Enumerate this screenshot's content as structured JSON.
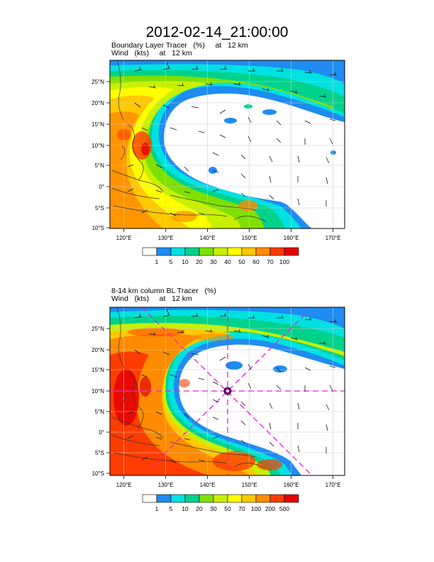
{
  "page_title": "2012-02-14_21:00:00",
  "panels": [
    {
      "line1": "Boundary Layer Tracer   (%)     at   12 km",
      "line2": "Wind   (kts)     at   12 km",
      "colorbar": {
        "labels": [
          "1",
          "5",
          "10",
          "20",
          "30",
          "40",
          "50",
          "60",
          "70",
          "100"
        ],
        "colors": [
          "#ffffff",
          "#1e8cf0",
          "#00e1e1",
          "#00d28c",
          "#7fe000",
          "#c8f000",
          "#ffff00",
          "#ffc800",
          "#ff8c00",
          "#ff3c00",
          "#e60000"
        ]
      }
    },
    {
      "line1": "8-14 km column BL Tracer   (%)",
      "line2": "Wind   (kts)     at   12 km",
      "colorbar": {
        "labels": [
          "1",
          "5",
          "10",
          "20",
          "30",
          "50",
          "70",
          "100",
          "200",
          "500"
        ],
        "colors": [
          "#ffffff",
          "#1e8cf0",
          "#00e1e1",
          "#00d28c",
          "#7fe000",
          "#c8f000",
          "#ffff00",
          "#ffc800",
          "#ff8c00",
          "#ff3c00",
          "#e60000"
        ]
      }
    }
  ],
  "lon_labels": [
    "120°E",
    "130°E",
    "140°E",
    "150°E",
    "160°E",
    "170°E"
  ],
  "lat_labels": [
    "25°N",
    "20°N",
    "15°N",
    "10°N",
    "5°N",
    "0°",
    "5°S",
    "10°S"
  ],
  "typhoon_marker": {
    "lon": 145,
    "lat": 10
  }
}
